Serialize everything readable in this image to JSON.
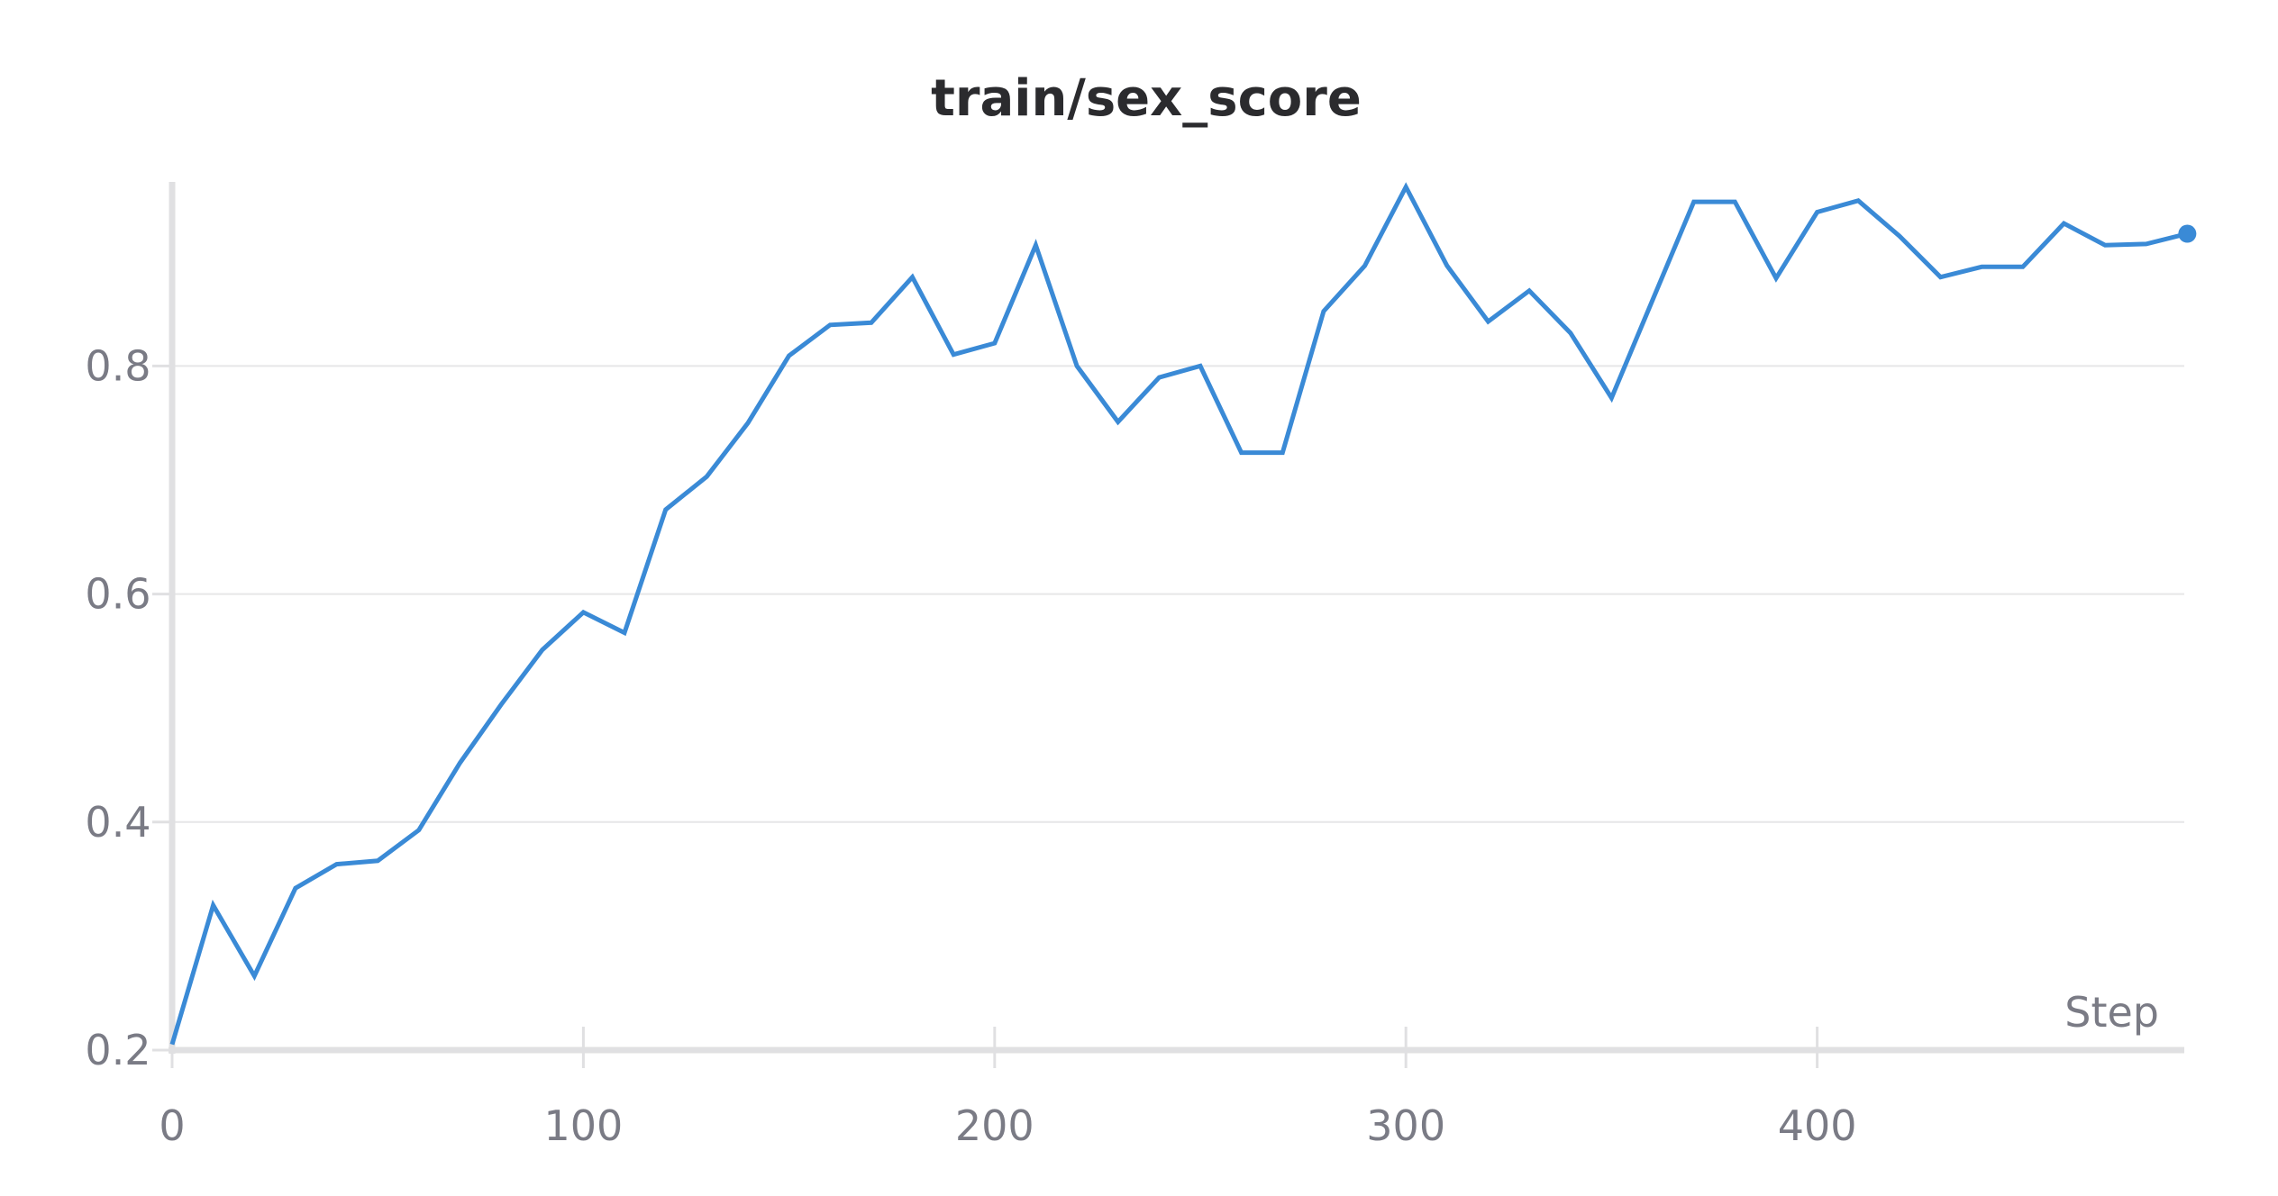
{
  "chart_data": {
    "type": "line",
    "title": "train/sex_score",
    "xlabel": "Step",
    "ylabel": "",
    "xlim": [
      0,
      490
    ],
    "ylim": [
      0.2,
      0.96
    ],
    "x_ticks": [
      0,
      100,
      200,
      300,
      400
    ],
    "y_ticks": [
      0.2,
      0.4,
      0.6,
      0.8
    ],
    "y_tick_labels": [
      "0.2",
      "0.4",
      "0.6",
      "0.8"
    ],
    "x_tick_labels": [
      "0",
      "100",
      "200",
      "300",
      "400"
    ],
    "grid": true,
    "colors": {
      "line": "#3a8ad6",
      "grid": "#e6e6e8",
      "axis": "#e0e0e2",
      "title": "#2b2b2e",
      "ticks": "#7a7b85"
    },
    "series": [
      {
        "x": [
          0,
          10,
          20,
          30,
          40,
          50,
          60,
          70,
          80,
          90,
          100,
          110,
          120,
          130,
          140,
          150,
          160,
          170,
          180,
          190,
          200,
          210,
          220,
          230,
          240,
          250,
          260,
          270,
          280,
          290,
          300,
          310,
          320,
          330,
          340,
          350,
          360,
          370,
          380,
          390,
          400,
          410,
          420,
          430,
          440,
          450,
          460,
          470,
          480,
          490
        ],
        "values": [
          0.205,
          0.327,
          0.265,
          0.342,
          0.363,
          0.366,
          0.393,
          0.452,
          0.503,
          0.551,
          0.584,
          0.566,
          0.674,
          0.703,
          0.75,
          0.809,
          0.836,
          0.838,
          0.878,
          0.81,
          0.82,
          0.906,
          0.8,
          0.751,
          0.79,
          0.8,
          0.724,
          0.724,
          0.848,
          0.888,
          0.957,
          0.888,
          0.839,
          0.866,
          0.829,
          0.772,
          0.858,
          0.944,
          0.944,
          0.877,
          0.935,
          0.945,
          0.914,
          0.878,
          0.887,
          0.887,
          0.925,
          0.906,
          0.907,
          0.916
        ]
      }
    ]
  }
}
